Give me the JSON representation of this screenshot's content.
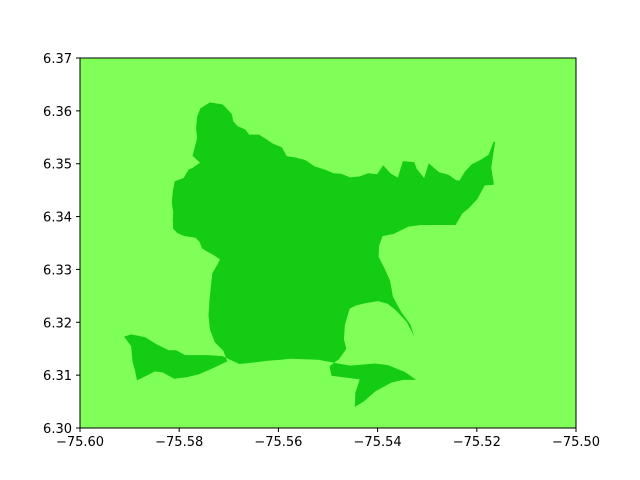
{
  "chart_data": {
    "type": "map",
    "title": "",
    "xlabel": "",
    "ylabel": "",
    "xlim": [
      -75.6,
      -75.5
    ],
    "ylim": [
      6.3,
      6.37
    ],
    "x_ticks": [
      "−75.60",
      "−75.58",
      "−75.56",
      "−75.54",
      "−75.52",
      "−75.50"
    ],
    "x_tick_values": [
      -75.6,
      -75.58,
      -75.56,
      -75.54,
      -75.52,
      -75.5
    ],
    "y_ticks": [
      "6.30",
      "6.31",
      "6.32",
      "6.33",
      "6.34",
      "6.35",
      "6.36",
      "6.37"
    ],
    "y_tick_values": [
      6.3,
      6.31,
      6.32,
      6.33,
      6.34,
      6.35,
      6.36,
      6.37
    ],
    "grid": false,
    "background_color": "#80ff58",
    "region": {
      "fill_color": "#14cc14",
      "outline": [
        [
          -75.5738,
          6.3616
        ],
        [
          -75.5712,
          6.3612
        ],
        [
          -75.57,
          6.36
        ],
        [
          -75.5694,
          6.3594
        ],
        [
          -75.5691,
          6.358
        ],
        [
          -75.5682,
          6.3571
        ],
        [
          -75.5667,
          6.3565
        ],
        [
          -75.5659,
          6.3555
        ],
        [
          -75.5639,
          6.3555
        ],
        [
          -75.5624,
          6.3546
        ],
        [
          -75.5611,
          6.3538
        ],
        [
          -75.5593,
          6.3531
        ],
        [
          -75.5583,
          6.3514
        ],
        [
          -75.5567,
          6.3512
        ],
        [
          -75.5546,
          6.3507
        ],
        [
          -75.5527,
          6.3495
        ],
        [
          -75.5507,
          6.3489
        ],
        [
          -75.5489,
          6.3482
        ],
        [
          -75.5473,
          6.3481
        ],
        [
          -75.5455,
          6.3474
        ],
        [
          -75.5436,
          6.3476
        ],
        [
          -75.5419,
          6.3482
        ],
        [
          -75.5401,
          6.348
        ],
        [
          -75.5389,
          6.3497
        ],
        [
          -75.5373,
          6.3481
        ],
        [
          -75.5359,
          6.3474
        ],
        [
          -75.5349,
          6.3505
        ],
        [
          -75.5326,
          6.3503
        ],
        [
          -75.5321,
          6.349
        ],
        [
          -75.5306,
          6.3473
        ],
        [
          -75.5297,
          6.3501
        ],
        [
          -75.5276,
          6.3484
        ],
        [
          -75.5257,
          6.3479
        ],
        [
          -75.5242,
          6.3469
        ],
        [
          -75.5235,
          6.3468
        ],
        [
          -75.5224,
          6.3485
        ],
        [
          -75.521,
          6.3499
        ],
        [
          -75.5193,
          6.3507
        ],
        [
          -75.5176,
          6.3517
        ],
        [
          -75.5166,
          6.3542
        ],
        [
          -75.5163,
          6.3541
        ],
        [
          -75.5167,
          6.3518
        ],
        [
          -75.5171,
          6.3492
        ],
        [
          -75.5166,
          6.3464
        ],
        [
          -75.5166,
          6.346
        ],
        [
          -75.5184,
          6.3459
        ],
        [
          -75.5199,
          6.3433
        ],
        [
          -75.5216,
          6.3416
        ],
        [
          -75.5229,
          6.3406
        ],
        [
          -75.5243,
          6.3384
        ],
        [
          -75.5312,
          6.3384
        ],
        [
          -75.5338,
          6.3381
        ],
        [
          -75.5368,
          6.3367
        ],
        [
          -75.539,
          6.3363
        ],
        [
          -75.5397,
          6.3345
        ],
        [
          -75.5398,
          6.3324
        ],
        [
          -75.5386,
          6.3302
        ],
        [
          -75.5375,
          6.3279
        ],
        [
          -75.5369,
          6.3248
        ],
        [
          -75.5352,
          6.3219
        ],
        [
          -75.5334,
          6.3196
        ],
        [
          -75.5326,
          6.3173
        ],
        [
          -75.5341,
          6.32
        ],
        [
          -75.5362,
          6.3222
        ],
        [
          -75.538,
          6.3235
        ],
        [
          -75.5399,
          6.324
        ],
        [
          -75.5425,
          6.3236
        ],
        [
          -75.5443,
          6.3232
        ],
        [
          -75.5456,
          6.3226
        ],
        [
          -75.5466,
          6.3195
        ],
        [
          -75.5468,
          6.3168
        ],
        [
          -75.5463,
          6.315
        ],
        [
          -75.5478,
          6.313
        ],
        [
          -75.5497,
          6.3117
        ],
        [
          -75.5493,
          6.3099
        ],
        [
          -75.5436,
          6.3092
        ],
        [
          -75.5445,
          6.3066
        ],
        [
          -75.5446,
          6.304
        ],
        [
          -75.5428,
          6.305
        ],
        [
          -75.5405,
          6.3069
        ],
        [
          -75.5372,
          6.3086
        ],
        [
          -75.5348,
          6.3091
        ],
        [
          -75.5322,
          6.3091
        ],
        [
          -75.5345,
          6.3106
        ],
        [
          -75.5379,
          6.3119
        ],
        [
          -75.5405,
          6.3122
        ],
        [
          -75.5432,
          6.312
        ],
        [
          -75.5455,
          6.3118
        ],
        [
          -75.5474,
          6.3121
        ],
        [
          -75.5497,
          6.3125
        ],
        [
          -75.552,
          6.3129
        ],
        [
          -75.5549,
          6.313
        ],
        [
          -75.5575,
          6.3131
        ],
        [
          -75.5595,
          6.3129
        ],
        [
          -75.5624,
          6.3127
        ],
        [
          -75.565,
          6.3124
        ],
        [
          -75.5679,
          6.3121
        ],
        [
          -75.5713,
          6.3136
        ],
        [
          -75.5741,
          6.3138
        ],
        [
          -75.5763,
          6.3138
        ],
        [
          -75.5788,
          6.3138
        ],
        [
          -75.5806,
          6.3147
        ],
        [
          -75.5821,
          6.3147
        ],
        [
          -75.5845,
          6.3158
        ],
        [
          -75.5869,
          6.3172
        ],
        [
          -75.5897,
          6.3177
        ],
        [
          -75.5911,
          6.3173
        ],
        [
          -75.5897,
          6.3155
        ],
        [
          -75.5894,
          6.3125
        ],
        [
          -75.5889,
          6.3108
        ],
        [
          -75.5885,
          6.309
        ],
        [
          -75.5866,
          6.3099
        ],
        [
          -75.5849,
          6.3107
        ],
        [
          -75.5833,
          6.3105
        ],
        [
          -75.581,
          6.3093
        ],
        [
          -75.5785,
          6.3096
        ],
        [
          -75.5759,
          6.3102
        ],
        [
          -75.573,
          6.3114
        ],
        [
          -75.5703,
          6.3126
        ],
        [
          -75.5711,
          6.3146
        ],
        [
          -75.5728,
          6.3162
        ],
        [
          -75.5738,
          6.3186
        ],
        [
          -75.5741,
          6.3213
        ],
        [
          -75.5739,
          6.3242
        ],
        [
          -75.5736,
          6.3269
        ],
        [
          -75.5733,
          6.3293
        ],
        [
          -75.5722,
          6.3311
        ],
        [
          -75.5718,
          6.3319
        ],
        [
          -75.573,
          6.3327
        ],
        [
          -75.5744,
          6.3334
        ],
        [
          -75.5754,
          6.334
        ],
        [
          -75.5759,
          6.3352
        ],
        [
          -75.5767,
          6.336
        ],
        [
          -75.5789,
          6.3363
        ],
        [
          -75.5804,
          6.3369
        ],
        [
          -75.5812,
          6.3377
        ],
        [
          -75.5813,
          6.3394
        ],
        [
          -75.5812,
          6.3408
        ],
        [
          -75.5815,
          6.3426
        ],
        [
          -75.5813,
          6.3448
        ],
        [
          -75.5809,
          6.3467
        ],
        [
          -75.5791,
          6.3473
        ],
        [
          -75.5781,
          6.3489
        ],
        [
          -75.5773,
          6.3492
        ],
        [
          -75.5758,
          6.3502
        ],
        [
          -75.5773,
          6.3515
        ],
        [
          -75.5769,
          6.353
        ],
        [
          -75.5764,
          6.3548
        ],
        [
          -75.5766,
          6.3568
        ],
        [
          -75.5764,
          6.3589
        ],
        [
          -75.5757,
          6.3605
        ]
      ]
    }
  }
}
